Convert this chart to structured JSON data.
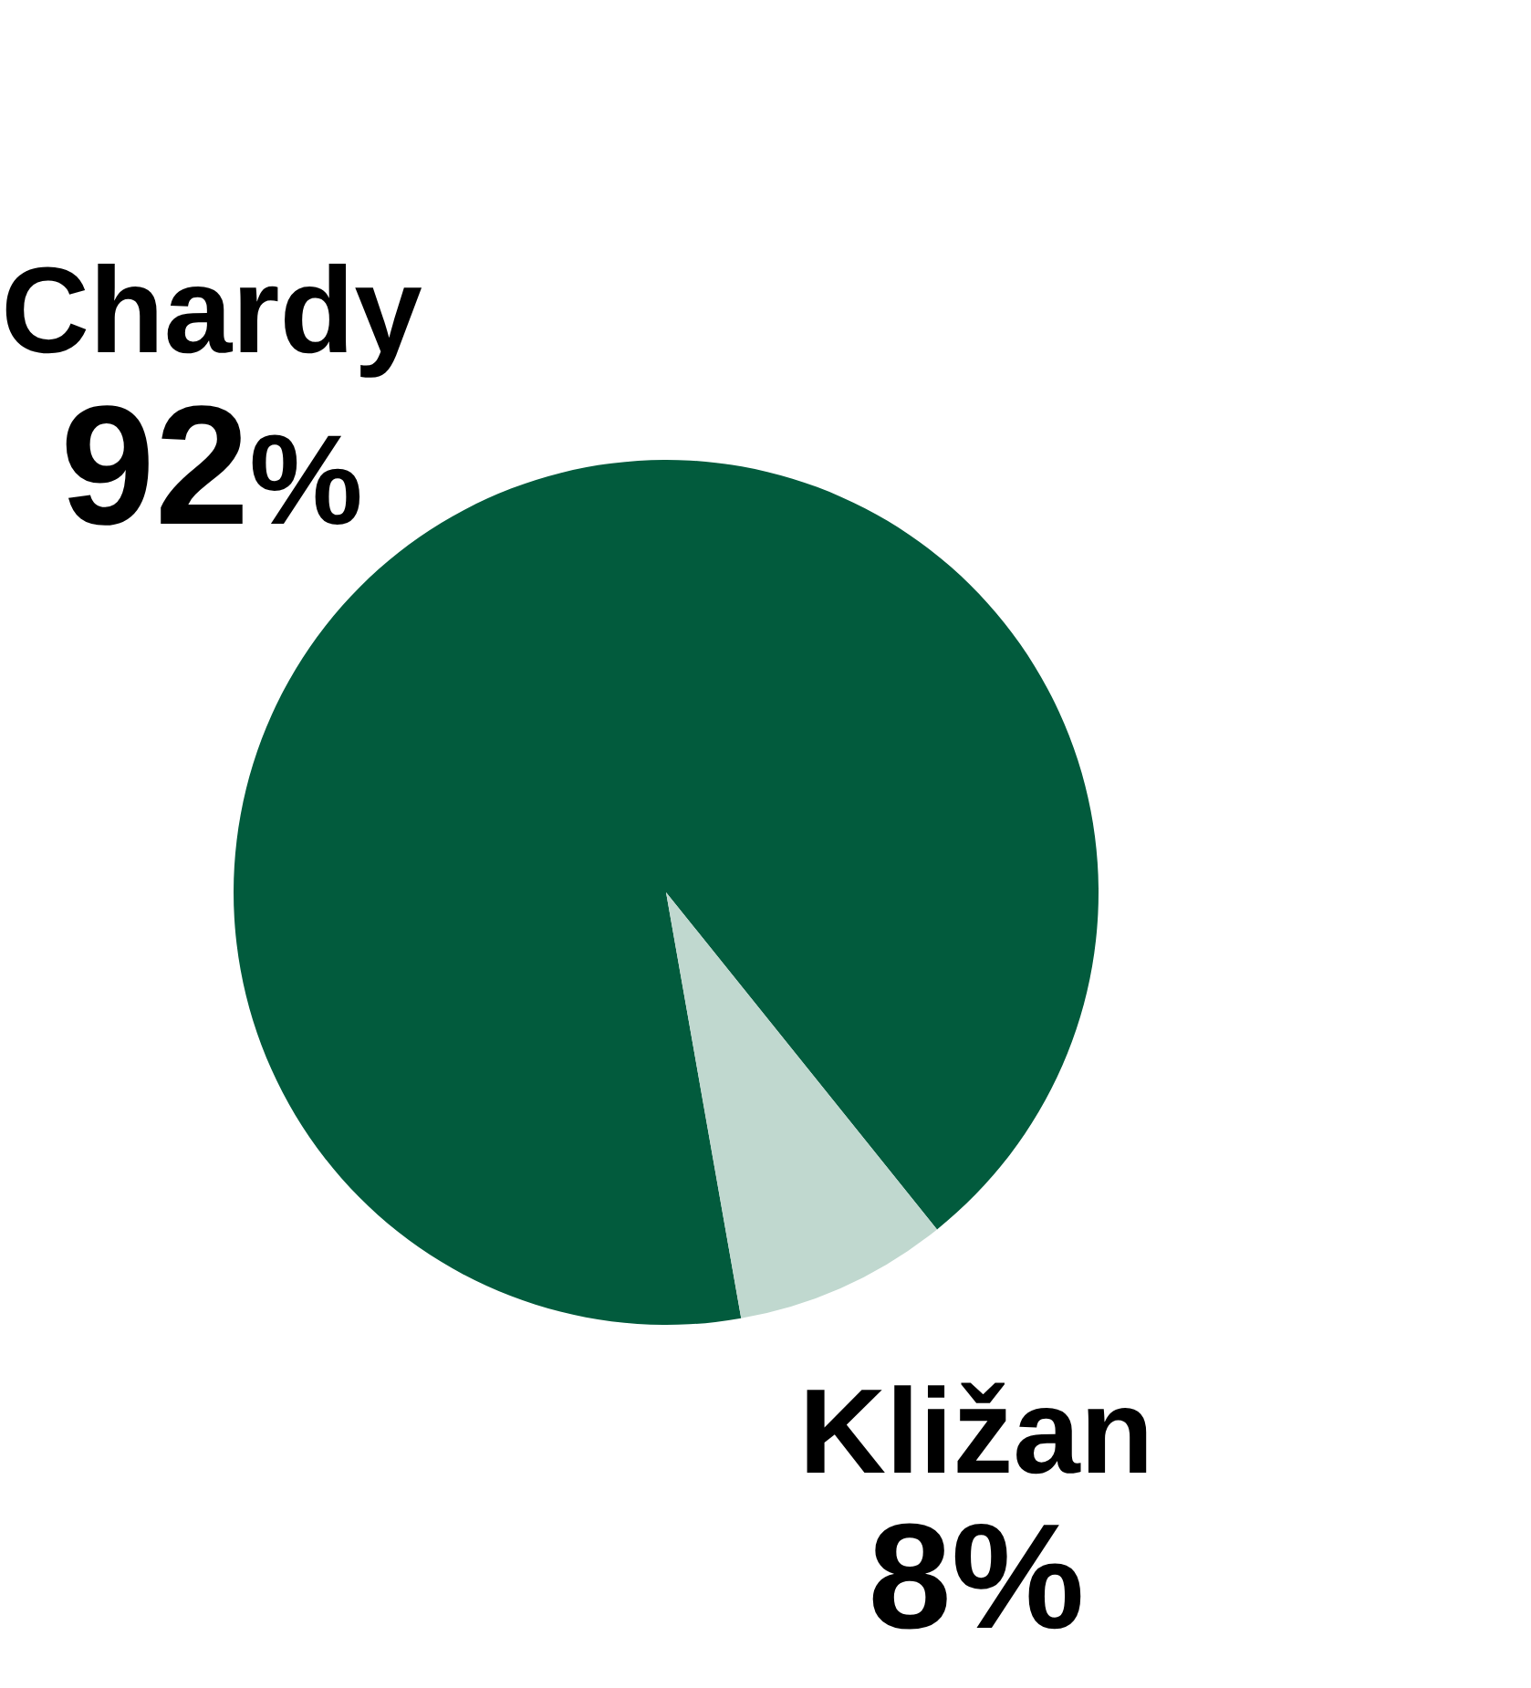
{
  "chart_data": {
    "type": "pie",
    "categories": [
      "Chardy",
      "Kližan"
    ],
    "values": [
      92,
      8
    ],
    "colors": [
      "#025b3d",
      "#c0d8cf"
    ],
    "value_labels": [
      "92%",
      "8%"
    ]
  }
}
